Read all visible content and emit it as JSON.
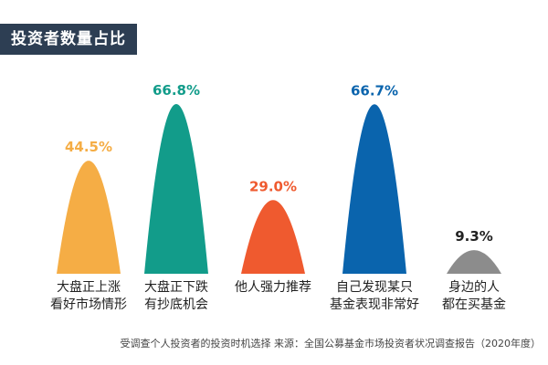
{
  "title": "投资者数量占比",
  "source": "受调查个人投资者的投资时机选择 来源：全国公募基金市场投资者状况调查报告（2020年度）",
  "chart_data": {
    "type": "bar",
    "shape": "parabolic",
    "categories": [
      [
        "大盘正上涨",
        "看好市场情形"
      ],
      [
        "大盘正下跌",
        "有抄底机会"
      ],
      [
        "他人强力推荐"
      ],
      [
        "自己发现某只",
        "基金表现非常好"
      ],
      [
        "身边的人",
        "都在买基金"
      ]
    ],
    "values": [
      44.5,
      66.8,
      29.0,
      66.7,
      9.3
    ],
    "value_labels": [
      "44.5%",
      "66.8%",
      "29.0%",
      "66.7%",
      "9.3%"
    ],
    "colors": [
      "#f5ad45",
      "#129c8a",
      "#ef5a2f",
      "#0a64ad",
      "#8c8c8c"
    ],
    "label_colors": [
      "#f5ad45",
      "#129c8a",
      "#ef5a2f",
      "#0a64ad",
      "#222222"
    ],
    "ylim": [
      0,
      66.8
    ],
    "grid": false
  }
}
